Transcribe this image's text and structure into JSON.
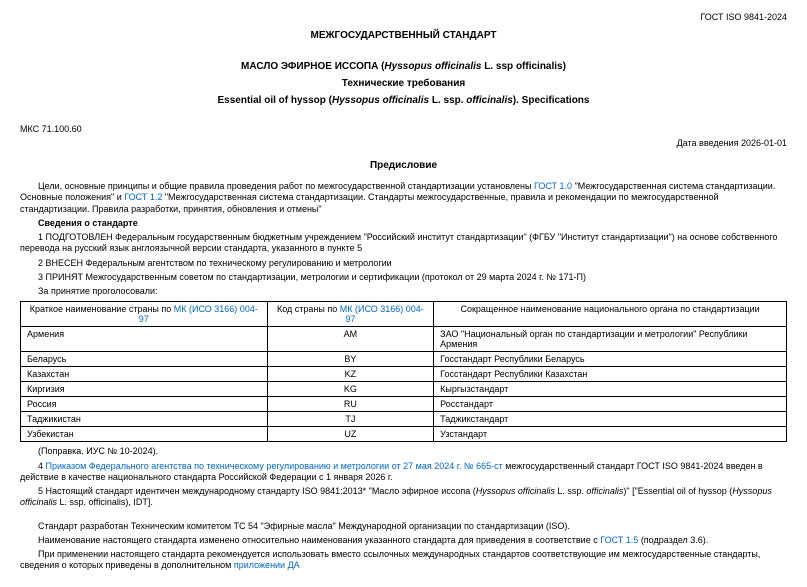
{
  "header": {
    "standard_code": "ГОСТ ISO 9841-2024",
    "main_title": "МЕЖГОСУДАРСТВЕННЫЙ СТАНДАРТ",
    "title_ru_prefix": "МАСЛО ЭФИРНОЕ ИССОПА (",
    "title_ru_latin": "Hyssopus officinalis",
    "title_ru_suffix": " L. ssp officinalis)",
    "subtitle_ru": "Технические требования",
    "title_en_prefix": "Essential oil of hyssop (",
    "title_en_latin": "Hyssopus officinalis",
    "title_en_mid": " L. ssp. ",
    "title_en_latin2": "officinalis",
    "title_en_suffix": "). Specifications",
    "mks": "МКС 71.100.60",
    "date_intro": "Дата введения 2026-01-01",
    "preface": "Предисловие"
  },
  "body": {
    "p1a": "Цели, основные принципы и общие правила проведения работ по межгосударственной стандартизации установлены ",
    "p1_link1": "ГОСТ 1.0",
    "p1b": " \"Межгосударственная система стандартизации. Основные положения\" и ",
    "p1_link2": "ГОСТ 1.2",
    "p1c": " \"Межгосударственная система стандартизации. Стандарты межгосударственные, правила и рекомендации по межгосударственной стандартизации. Правила разработки, принятия, обновления и отмены\"",
    "sved": "Сведения о стандарте",
    "p2": "1 ПОДГОТОВЛЕН Федеральным государственным бюджетным учреждением \"Российский институт стандартизации\" (ФГБУ \"Институт стандартизации\") на основе собственного перевода на русский язык англоязычной версии стандарта, указанного в пункте 5",
    "p3": "2 ВНЕСЕН Федеральным агентством по техническому регулированию и метрологии",
    "p4": "3 ПРИНЯТ Межгосударственным советом по стандартизации, метрологии и сертификации (протокол от 29 марта 2024 г. № 171-П)",
    "p5": "За принятие проголосовали:"
  },
  "table": {
    "h1a": "Краткое наименование страны по ",
    "h1_link": "МК (ИСО 3166) 004-97",
    "h2a": "Код страны по ",
    "h2_link": "МК (ИСО 3166) 004-97",
    "h3": "Сокращенное наименование национального органа по стандартизации",
    "rows": [
      {
        "country": "Армения",
        "code": "AM",
        "org": "ЗАО \"Национальный орган по стандартизации и метрологии\" Республики Армения"
      },
      {
        "country": "Беларусь",
        "code": "BY",
        "org": "Госстандарт Республики Беларусь"
      },
      {
        "country": "Казахстан",
        "code": "KZ",
        "org": "Госстандарт Республики Казахстан"
      },
      {
        "country": "Киргизия",
        "code": "KG",
        "org": "Кыргызстандарт"
      },
      {
        "country": "Россия",
        "code": "RU",
        "org": "Росстандарт"
      },
      {
        "country": "Таджикистан",
        "code": "TJ",
        "org": "Таджикстандарт"
      },
      {
        "country": "Узбекистан",
        "code": "UZ",
        "org": "Узстандарт"
      }
    ]
  },
  "footer": {
    "p6": "(Поправка. ИУС № 10-2024).",
    "p7a": "4 ",
    "p7_link": "Приказом Федерального агентства по техническому регулированию и метрологии от 27 мая 2024 г. № 665-ст",
    "p7b": " межгосударственный стандарт ГОСТ ISO 9841-2024 введен в действие в качестве национального стандарта Российской Федерации с 1 января 2026 г.",
    "p8a": "5 Настоящий стандарт идентичен международному стандарту ISO 9841:2013* \"Масло эфирное иссопа (",
    "p8_lat1": "Hyssopus officinalis",
    "p8b": " L. ssp. ",
    "p8_lat2": "officinalis",
    "p8c": ")\" [\"Essential oil of hyssop (",
    "p8_lat3": "Hyssopus officinalis",
    "p8d": " L. ssp. officinalis), IDT].",
    "p9": "Стандарт разработан Техническим комитетом ТС 54 \"Эфирные масла\" Международной организации по стандартизации (ISO).",
    "p10a": "Наименование настоящего стандарта изменено относительно наименования указанного стандарта для приведения в соответствие с ",
    "p10_link": "ГОСТ 1.5",
    "p10b": " (подраздел 3.6).",
    "p11a": "При применении настоящего стандарта рекомендуется использовать вместо ссылочных международных стандартов соответствующие им межгосударственные стандарты, сведения о которых приведены в дополнительном ",
    "p11_link": "приложении ДА"
  },
  "colors": {
    "link": "#0066cc"
  }
}
